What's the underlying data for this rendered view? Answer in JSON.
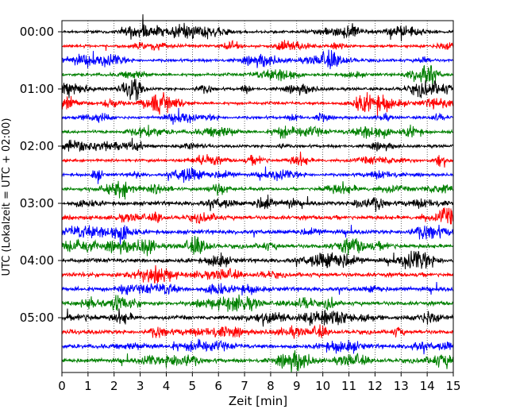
{
  "chart_data": {
    "type": "line",
    "title": "",
    "xlabel": "Zeit  [min]",
    "ylabel": "UTC (Lokalzeit = UTC + 02:00)",
    "xlim": [
      0,
      15
    ],
    "x_ticks": [
      0,
      1,
      2,
      3,
      4,
      5,
      6,
      7,
      8,
      9,
      10,
      11,
      12,
      13,
      14,
      15
    ],
    "y_tick_labels": [
      "00:00",
      "01:00",
      "02:00",
      "03:00",
      "04:00",
      "05:00"
    ],
    "vertical_grid": "dotted",
    "trace_colors": [
      "#000000",
      "#ff0000",
      "#0000ff",
      "#008000"
    ],
    "trace_count": 24,
    "trace_start_times": [
      "00:00",
      "00:15",
      "00:30",
      "00:45",
      "01:00",
      "01:15",
      "01:30",
      "01:45",
      "02:00",
      "02:15",
      "02:30",
      "02:45",
      "03:00",
      "03:15",
      "03:30",
      "03:45",
      "04:00",
      "04:15",
      "04:30",
      "04:45",
      "05:00",
      "05:15",
      "05:30",
      "05:45"
    ]
  }
}
